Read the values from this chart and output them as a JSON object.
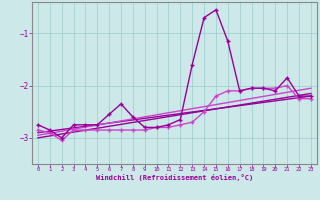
{
  "xlabel": "Windchill (Refroidissement éolien,°C)",
  "bg_color": "#cce8e8",
  "grid_color": "#99cccc",
  "line_color1": "#990099",
  "line_color2": "#cc44cc",
  "xlim": [
    -0.5,
    23.5
  ],
  "ylim": [
    -3.5,
    -0.4
  ],
  "yticks": [
    -3,
    -2,
    -1
  ],
  "xticks": [
    0,
    1,
    2,
    3,
    4,
    5,
    6,
    7,
    8,
    9,
    10,
    11,
    12,
    13,
    14,
    15,
    16,
    17,
    18,
    19,
    20,
    21,
    22,
    23
  ],
  "series1_x": [
    0,
    1,
    2,
    3,
    4,
    5,
    6,
    7,
    8,
    9,
    10,
    11,
    12,
    13,
    14,
    15,
    16,
    17,
    18,
    19,
    20,
    21,
    22,
    23
  ],
  "series1_y": [
    -2.75,
    -2.85,
    -3.0,
    -2.75,
    -2.75,
    -2.75,
    -2.55,
    -2.35,
    -2.6,
    -2.8,
    -2.8,
    -2.75,
    -2.65,
    -1.6,
    -0.7,
    -0.55,
    -1.15,
    -2.1,
    -2.05,
    -2.05,
    -2.1,
    -1.85,
    -2.2,
    -2.2
  ],
  "series2_x": [
    0,
    1,
    2,
    3,
    4,
    5,
    6,
    7,
    8,
    9,
    10,
    11,
    12,
    13,
    14,
    15,
    16,
    17,
    18,
    19,
    20,
    21,
    22,
    23
  ],
  "series2_y": [
    -2.85,
    -2.9,
    -3.05,
    -2.85,
    -2.85,
    -2.85,
    -2.85,
    -2.85,
    -2.85,
    -2.85,
    -2.8,
    -2.8,
    -2.75,
    -2.7,
    -2.5,
    -2.2,
    -2.1,
    -2.1,
    -2.05,
    -2.05,
    -2.05,
    -2.0,
    -2.25,
    -2.25
  ],
  "trend1_x": [
    0,
    23
  ],
  "trend1_y": [
    -2.9,
    -2.2
  ],
  "trend2_x": [
    0,
    23
  ],
  "trend2_y": [
    -2.95,
    -2.05
  ],
  "trend3_x": [
    0,
    23
  ],
  "trend3_y": [
    -3.0,
    -2.15
  ]
}
